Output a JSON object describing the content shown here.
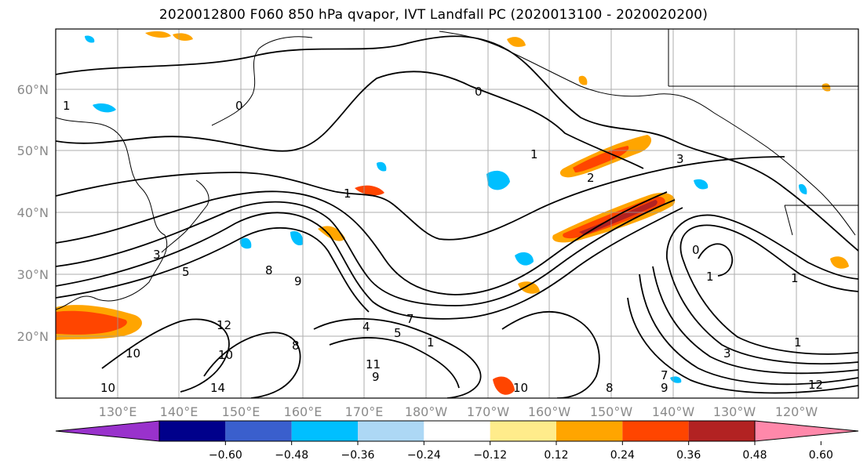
{
  "title": "2020012800 F060 850 hPa qvapor, IVT Landfall PC (2020013100 - 2020020200)",
  "latitude_labels": [
    "60°N",
    "50°N",
    "40°N",
    "30°N",
    "20°N"
  ],
  "longitude_labels": [
    "130°E",
    "140°E",
    "150°E",
    "160°E",
    "170°E",
    "180°W",
    "170°W",
    "160°W",
    "150°W",
    "140°W",
    "130°W",
    "120°W"
  ],
  "colorbar": {
    "colors": [
      "#9932cc",
      "#00008b",
      "#3a5fcd",
      "#00bfff",
      "#add8f5",
      "#ffffff",
      "#ffec8b",
      "#ffa500",
      "#ff4500",
      "#b22222",
      "#ff88aa"
    ],
    "tick_labels": [
      "−0.60",
      "−0.48",
      "−0.36",
      "−0.24",
      "−0.12",
      "0.12",
      "0.24",
      "0.36",
      "0.48",
      "0.60"
    ]
  },
  "contour_labels": [
    "0",
    "0",
    "1",
    "1",
    "1",
    "1",
    "2",
    "3",
    "3",
    "0",
    "5",
    "7",
    "8",
    "9",
    "4",
    "5",
    "1",
    "10",
    "12",
    "10",
    "8",
    "14",
    "10",
    "11",
    "9",
    "10",
    "8",
    "7",
    "9",
    "3",
    "1",
    "12",
    "1"
  ]
}
